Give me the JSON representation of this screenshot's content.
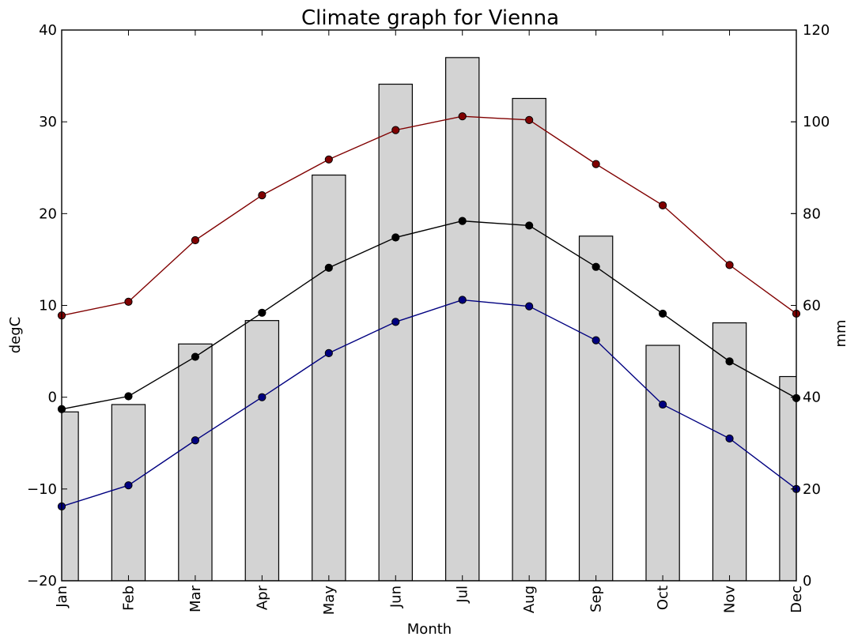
{
  "chart_data": {
    "type": "bar+line",
    "title": "Climate graph for Vienna",
    "xlabel": "Month",
    "ylabel_left": "degC",
    "ylabel_right": "mm",
    "categories": [
      "Jan",
      "Feb",
      "Mar",
      "Apr",
      "May",
      "Jun",
      "Jul",
      "Aug",
      "Sep",
      "Oct",
      "Nov",
      "Dec"
    ],
    "ylim_left": [
      -20,
      40
    ],
    "ylim_right": [
      0,
      120
    ],
    "yticks_left": [
      -20,
      -10,
      0,
      10,
      20,
      30,
      40
    ],
    "yticks_right": [
      0,
      20,
      40,
      60,
      80,
      100,
      120
    ],
    "grid": false,
    "legend": "none",
    "bars": {
      "axis": "right",
      "color": "#d3d3d3",
      "values": [
        36.8,
        38.4,
        51.6,
        56.7,
        88.4,
        108.2,
        114.0,
        105.1,
        75.1,
        51.3,
        56.2,
        44.5
      ]
    },
    "series": [
      {
        "axis": "left",
        "color": "#800000",
        "values": [
          8.9,
          10.4,
          17.1,
          22.0,
          25.9,
          29.1,
          30.6,
          30.2,
          25.4,
          20.9,
          14.4,
          9.1
        ]
      },
      {
        "axis": "left",
        "color": "#000000",
        "values": [
          -1.3,
          0.1,
          4.4,
          9.2,
          14.1,
          17.4,
          19.2,
          18.7,
          14.2,
          9.1,
          3.9,
          -0.1
        ]
      },
      {
        "axis": "left",
        "color": "#000080",
        "values": [
          -11.9,
          -9.6,
          -4.7,
          0.0,
          4.8,
          8.2,
          10.6,
          9.9,
          6.2,
          -0.8,
          -4.5,
          -10.0
        ]
      }
    ]
  }
}
